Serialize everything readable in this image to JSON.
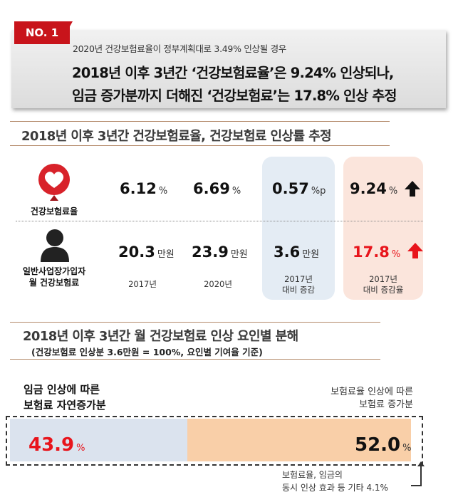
{
  "header": {
    "badge": "NO. 1",
    "subtitle": "2020년 건강보험료율이 정부계획대로 3.49% 인상될 경우",
    "headline_1": "2018년 이후 3년간 ‘건강보험료율’은 9.24% 인상되나,",
    "headline_2": "임금 증가분까지 더해진 ‘건강보험료’는 17.8% 인상 추정"
  },
  "section1": {
    "title": "2018년 이후 3년간 건강보험료율, 건강보험료 인상률 추정",
    "rows": [
      {
        "label": "건강보험료율",
        "icon": "heart-icon",
        "v2017": "6.12",
        "u2017": "%",
        "v2020": "6.69",
        "u2020": "%",
        "change": "0.57",
        "change_unit": "%p",
        "rate": "9.24",
        "rate_unit": "%"
      },
      {
        "label_1": "일반사업장가입자",
        "label_2": "월 건강보험료",
        "icon": "person-icon",
        "v2017": "20.3",
        "u2017": "만원",
        "v2020": "23.9",
        "u2020": "만원",
        "change": "3.6",
        "change_unit": "만원",
        "rate": "17.8",
        "rate_unit": "%"
      }
    ],
    "col_2017": "2017년",
    "col_2020": "2020년",
    "col_change_1": "2017년",
    "col_change_2": "대비 증감",
    "col_rate_1": "2017년",
    "col_rate_2": "대비 증감율",
    "colors": {
      "accent_red": "#e8141b",
      "blue_col": "#e4ecf4",
      "pink_col": "#fbe5dc"
    }
  },
  "section2": {
    "title": "2018년 이후 3년간 월 건강보험료 인상 요인별 분해",
    "subtitle": "(건강보험료 인상분 3.6만원 = 100%, 요인별 기여율 기준)",
    "left_label_1": "임금 인상에 따른",
    "left_label_2": "보험료 자연증가분",
    "right_label_1": "보험료율 인상에 따른",
    "right_label_2": "보험료 증가분",
    "note_1": "보험료율, 임금의",
    "note_2": "동시 인상 효과 등 기타 4.1%"
  },
  "chart_data": {
    "type": "bar",
    "stacked": true,
    "categories": [
      "임금 인상에 따른 보험료 자연증가분",
      "보험료율 인상에 따른 보험료 증가분",
      "보험료율, 임금의 동시 인상 효과 등 기타"
    ],
    "values": [
      43.9,
      52.0,
      4.1
    ],
    "value_labels": [
      "43.9",
      "52.0",
      "4.1%"
    ],
    "unit": "%",
    "colors": [
      "#dbe3ee",
      "#f9cfa8",
      "#ffffff"
    ]
  }
}
